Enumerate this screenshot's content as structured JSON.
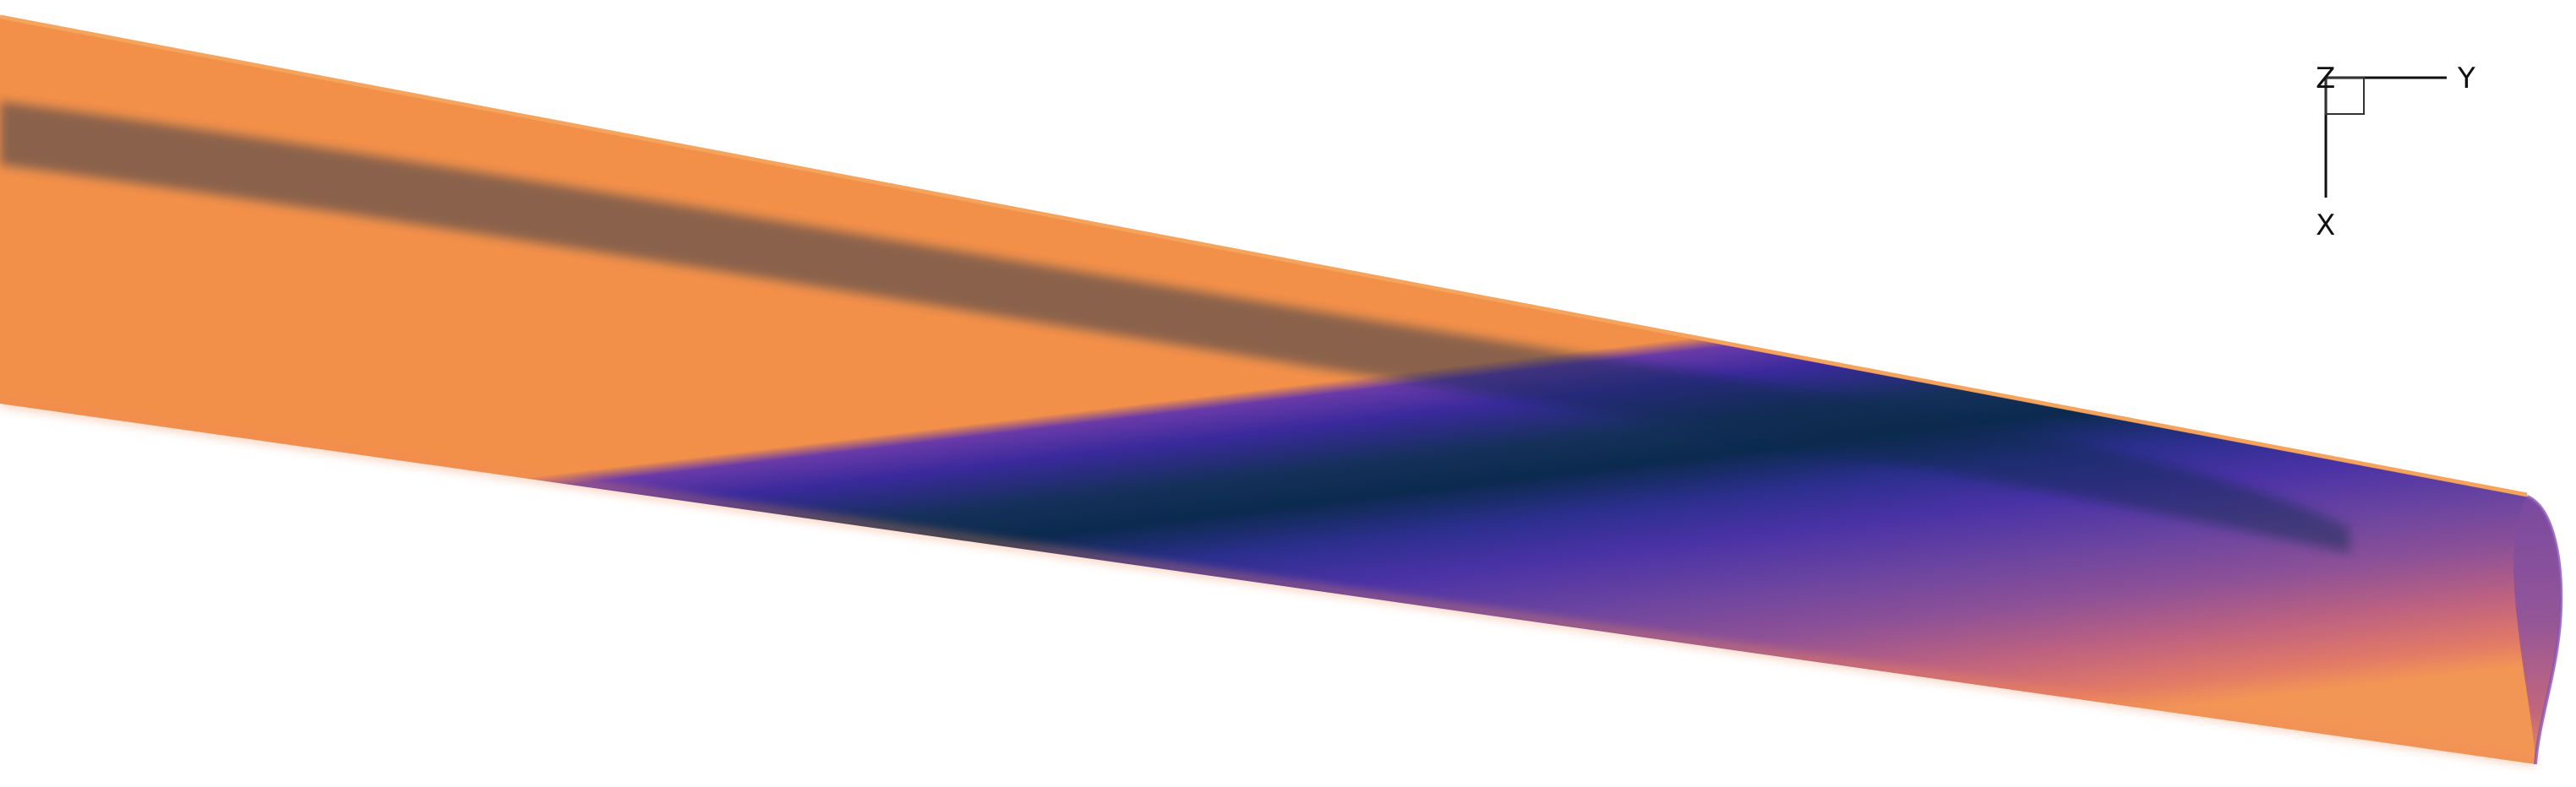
{
  "surface": {
    "colormap": [
      "#0b2a4e",
      "#3a2a9c",
      "#5a3fa3",
      "#8a4f96",
      "#c86a7a",
      "#f08a5a"
    ]
  },
  "triad": {
    "z_label": "Z",
    "y_label": "Y",
    "x_label": "X"
  }
}
